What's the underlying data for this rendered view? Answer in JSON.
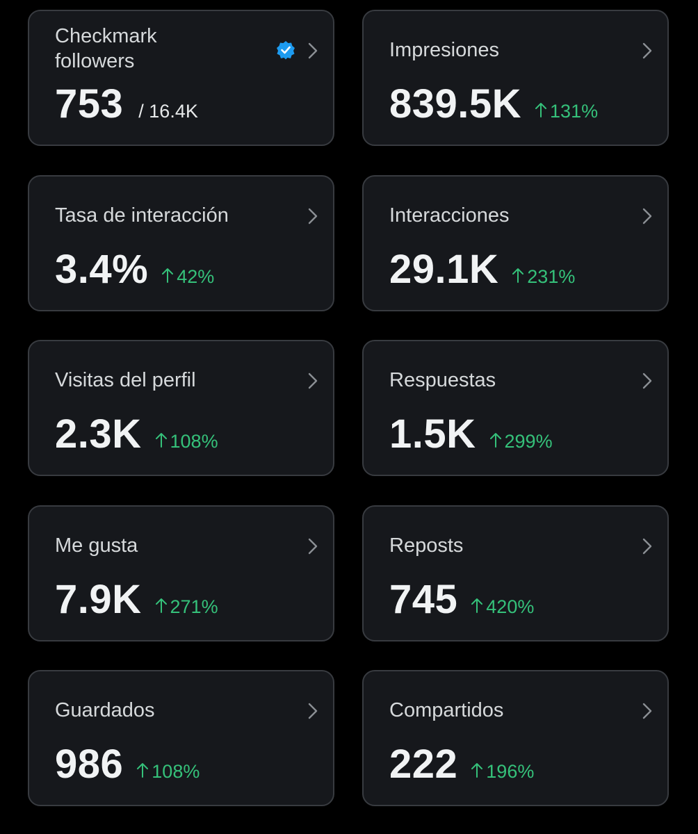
{
  "cards": [
    {
      "title": "Checkmark followers",
      "value": "753",
      "total": "/ 16.4K"
    },
    {
      "title": "Impresiones",
      "value": "839.5K",
      "change": "131%"
    },
    {
      "title": "Tasa de interacción",
      "value": "3.4%",
      "change": "42%"
    },
    {
      "title": "Interacciones",
      "value": "29.1K",
      "change": "231%"
    },
    {
      "title": "Visitas del perfil",
      "value": "2.3K",
      "change": "108%"
    },
    {
      "title": "Respuestas",
      "value": "1.5K",
      "change": "299%"
    },
    {
      "title": "Me gusta",
      "value": "7.9K",
      "change": "271%"
    },
    {
      "title": "Reposts",
      "value": "745",
      "change": "420%"
    },
    {
      "title": "Guardados",
      "value": "986",
      "change": "108%"
    },
    {
      "title": "Compartidos",
      "value": "222",
      "change": "196%"
    }
  ]
}
